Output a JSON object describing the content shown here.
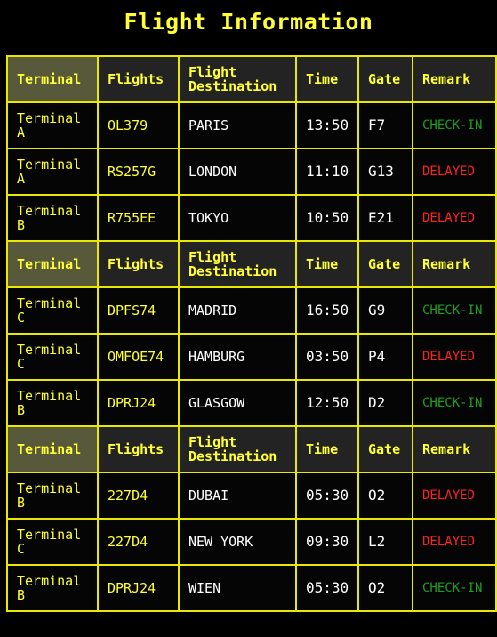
{
  "title": "Flight Information",
  "columns": {
    "terminal": "Terminal",
    "flights": "Flights",
    "destination": "Flight Destination",
    "time": "Time",
    "gate": "Gate",
    "remark": "Remark"
  },
  "colors": {
    "accent": "#ffff33",
    "border": "#e8e800",
    "checkin": "#1f9e1f",
    "delayed": "#ff2222"
  },
  "groups": [
    {
      "rows": [
        {
          "terminal": "Terminal A",
          "flight": "OL379",
          "destination": "PARIS",
          "time": "13:50",
          "gate": "F7",
          "remark": "CHECK-IN",
          "status": "checkin"
        },
        {
          "terminal": "Terminal A",
          "flight": "RS257G",
          "destination": "LONDON",
          "time": "11:10",
          "gate": "G13",
          "remark": "DELAYED",
          "status": "delayed"
        },
        {
          "terminal": "Terminal B",
          "flight": "R755EE",
          "destination": "TOKYO",
          "time": "10:50",
          "gate": "E21",
          "remark": "DELAYED",
          "status": "delayed"
        }
      ]
    },
    {
      "rows": [
        {
          "terminal": "Terminal C",
          "flight": "DPFS74",
          "destination": "MADRID",
          "time": "16:50",
          "gate": "G9",
          "remark": "CHECK-IN",
          "status": "checkin"
        },
        {
          "terminal": "Terminal C",
          "flight": "OMFOE74",
          "destination": "HAMBURG",
          "time": "03:50",
          "gate": "P4",
          "remark": "DELAYED",
          "status": "delayed"
        },
        {
          "terminal": "Terminal B",
          "flight": "DPRJ24",
          "destination": "GLASGOW",
          "time": "12:50",
          "gate": "D2",
          "remark": "CHECK-IN",
          "status": "checkin"
        }
      ]
    },
    {
      "rows": [
        {
          "terminal": "Terminal B",
          "flight": "227D4",
          "destination": "DUBAI",
          "time": "05:30",
          "gate": "O2",
          "remark": "DELAYED",
          "status": "delayed"
        },
        {
          "terminal": "Terminal C",
          "flight": "227D4",
          "destination": "NEW YORK",
          "time": "09:30",
          "gate": "L2",
          "remark": "DELAYED",
          "status": "delayed"
        },
        {
          "terminal": "Terminal B",
          "flight": "DPRJ24",
          "destination": "WIEN",
          "time": "05:30",
          "gate": "O2",
          "remark": "CHECK-IN",
          "status": "checkin"
        }
      ]
    }
  ]
}
